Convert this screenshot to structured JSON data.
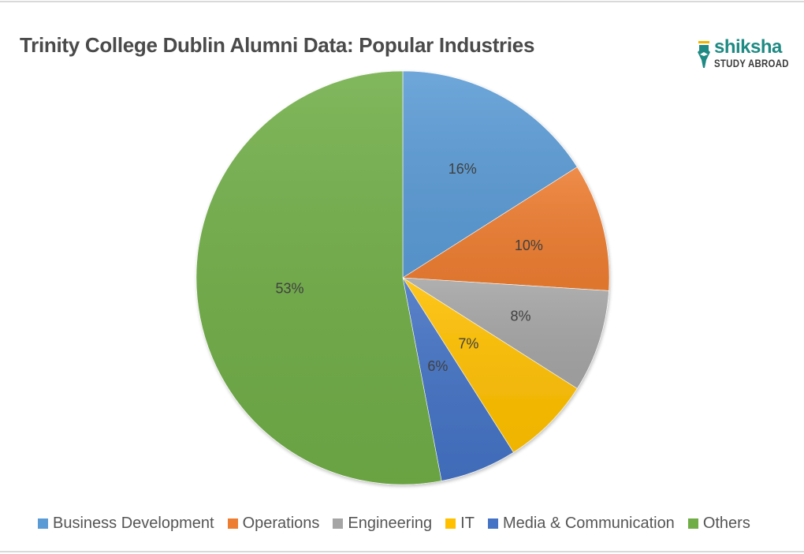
{
  "title": "Trinity College Dublin Alumni Data: Popular Industries",
  "logo": {
    "name": "shiksha",
    "subtitle": "STUDY ABROAD",
    "icon": "pen-nib-icon",
    "color": "#1f8a83"
  },
  "chart_data": {
    "type": "pie",
    "title": "Trinity College Dublin Alumni Data: Popular Industries",
    "categories": [
      "Business Development",
      "Operations",
      "Engineering",
      "IT",
      "Media & Communication",
      "Others"
    ],
    "values": [
      16,
      10,
      8,
      7,
      6,
      53
    ],
    "labels": [
      "16%",
      "10%",
      "8%",
      "7%",
      "6%",
      "53%"
    ],
    "colors": [
      "#5b9bd5",
      "#ed7d31",
      "#a5a5a5",
      "#ffc000",
      "#4472c4",
      "#70ad47"
    ],
    "start_angle": "12 o'clock",
    "direction": "clockwise",
    "legend_position": "bottom",
    "unit": "%"
  },
  "legend": [
    {
      "label": "Business Development",
      "color": "#5b9bd5"
    },
    {
      "label": "Operations",
      "color": "#ed7d31"
    },
    {
      "label": "Engineering",
      "color": "#a5a5a5"
    },
    {
      "label": "IT",
      "color": "#ffc000"
    },
    {
      "label": "Media & Communication",
      "color": "#4472c4"
    },
    {
      "label": "Others",
      "color": "#70ad47"
    }
  ]
}
